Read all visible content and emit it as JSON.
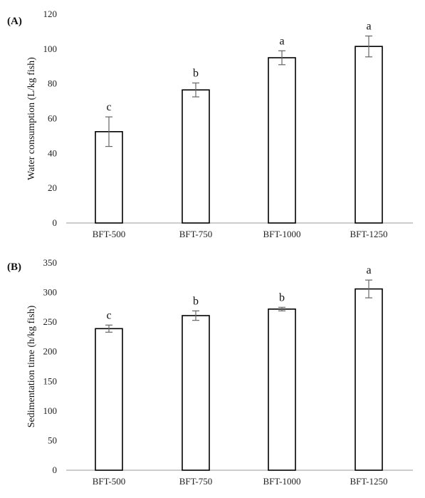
{
  "chart_data": [
    {
      "type": "bar",
      "panel_label": "(A)",
      "categories": [
        "BFT-500",
        "BFT-750",
        "BFT-1000",
        "BFT-1250"
      ],
      "values": [
        52.5,
        76.5,
        95,
        101.5
      ],
      "errors": [
        8.5,
        4,
        4,
        6
      ],
      "letters": [
        "c",
        "b",
        "a",
        "a"
      ],
      "ylabel": "Water consumption (L/kg fish)",
      "ylim": [
        0,
        120
      ],
      "yticks": [
        0,
        20,
        40,
        60,
        80,
        100,
        120
      ],
      "grid": false
    },
    {
      "type": "bar",
      "panel_label": "(B)",
      "categories": [
        "BFT-500",
        "BFT-750",
        "BFT-1000",
        "BFT-1250"
      ],
      "values": [
        239,
        261,
        272,
        306
      ],
      "errors": [
        6,
        8,
        3,
        15
      ],
      "letters": [
        "c",
        "b",
        "b",
        "a"
      ],
      "ylabel": "Sedimentation time  (h/kg fish)",
      "ylim": [
        0,
        350
      ],
      "yticks": [
        0,
        50,
        100,
        150,
        200,
        250,
        300,
        350
      ],
      "grid": false
    }
  ]
}
